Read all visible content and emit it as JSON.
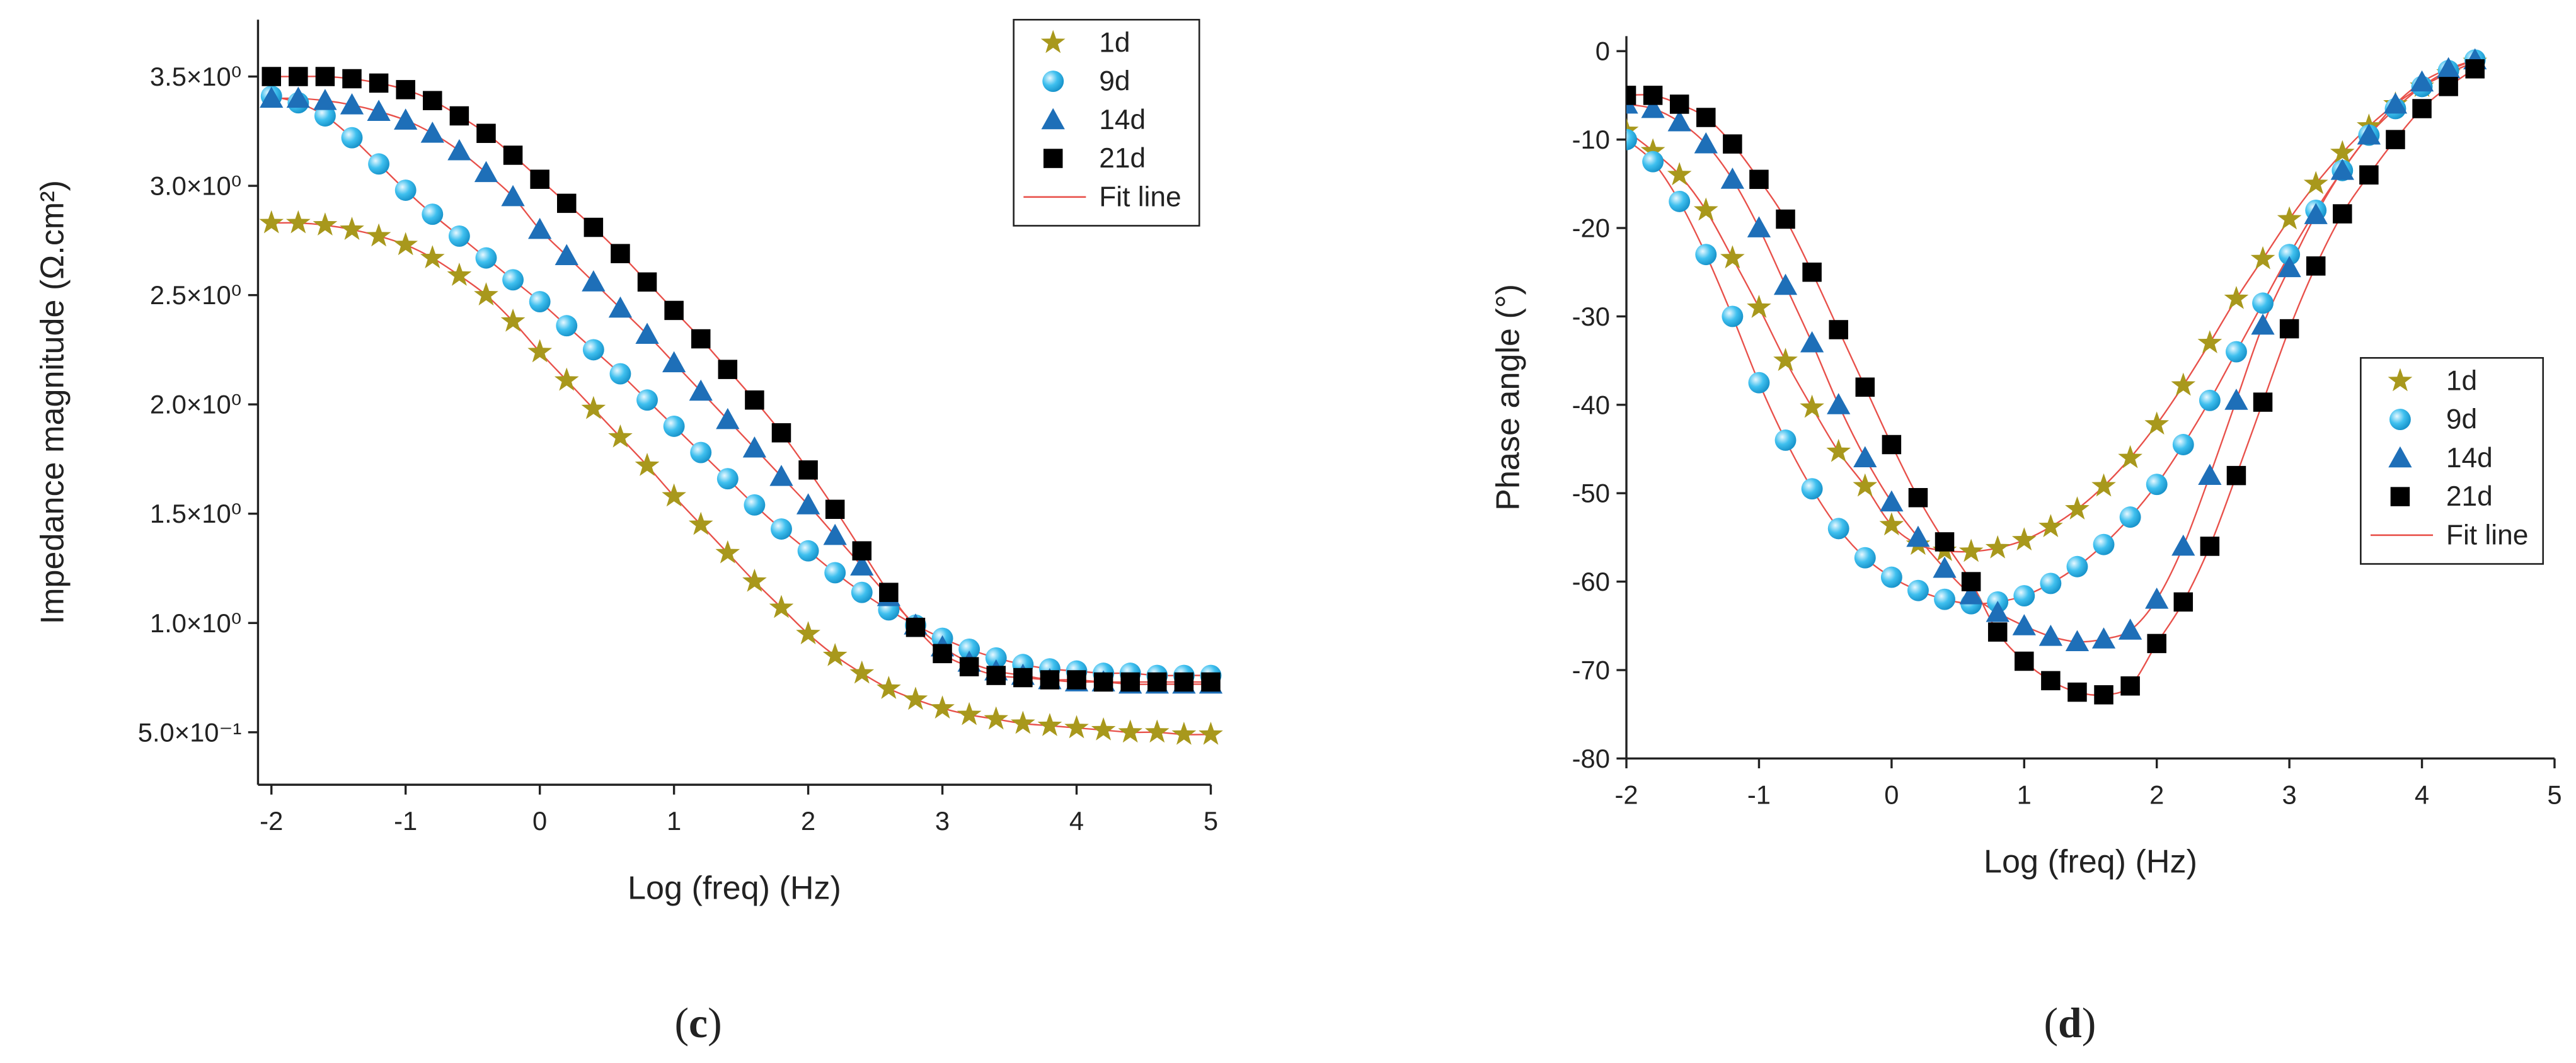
{
  "chart_data": [
    {
      "type": "scatter",
      "caption": "(c)",
      "xlabel": "Log (freq) (Hz)",
      "ylabel": "Impedance magnitude (Ω.cm²)",
      "xlim": [
        -2.1,
        5
      ],
      "xticks": [
        -2,
        -1,
        0,
        1,
        2,
        3,
        4,
        5
      ],
      "ylim": [
        0.26,
        3.76
      ],
      "yticks": [
        {
          "value": 0.5,
          "label": "5.0×10⁻¹"
        },
        {
          "value": 1.0,
          "label": "1.0×10⁰"
        },
        {
          "value": 1.5,
          "label": "1.5×10⁰"
        },
        {
          "value": 2.0,
          "label": "2.0×10⁰"
        },
        {
          "value": 2.5,
          "label": "2.5×10⁰"
        },
        {
          "value": 3.0,
          "label": "3.0×10⁰"
        },
        {
          "value": 3.5,
          "label": "3.5×10⁰"
        }
      ],
      "legend": "upper right",
      "fit_line": {
        "name": "Fit line",
        "color": "#e8504a"
      },
      "x": [
        -2,
        -1.8,
        -1.6,
        -1.4,
        -1.2,
        -1,
        -0.8,
        -0.6,
        -0.4,
        -0.2,
        0,
        0.2,
        0.4,
        0.6,
        0.8,
        1,
        1.2,
        1.4,
        1.6,
        1.8,
        2,
        2.2,
        2.4,
        2.6,
        2.8,
        3,
        3.2,
        3.4,
        3.6,
        3.8,
        4,
        4.2,
        4.4,
        4.6,
        4.8,
        5
      ],
      "series": [
        {
          "name": "1d",
          "color": "#a8981c",
          "marker": "star",
          "values": [
            2.83,
            2.83,
            2.82,
            2.8,
            2.77,
            2.73,
            2.67,
            2.59,
            2.5,
            2.38,
            2.24,
            2.11,
            1.98,
            1.85,
            1.72,
            1.58,
            1.45,
            1.32,
            1.19,
            1.07,
            0.95,
            0.85,
            0.77,
            0.7,
            0.65,
            0.61,
            0.58,
            0.56,
            0.54,
            0.53,
            0.52,
            0.51,
            0.5,
            0.5,
            0.49,
            0.49
          ]
        },
        {
          "name": "9d",
          "color": "#2bb5e8",
          "marker": "circle",
          "values": [
            3.41,
            3.38,
            3.32,
            3.22,
            3.1,
            2.98,
            2.87,
            2.77,
            2.67,
            2.57,
            2.47,
            2.36,
            2.25,
            2.14,
            2.02,
            1.9,
            1.78,
            1.66,
            1.54,
            1.43,
            1.33,
            1.23,
            1.14,
            1.06,
            0.99,
            0.93,
            0.88,
            0.84,
            0.81,
            0.79,
            0.78,
            0.77,
            0.77,
            0.76,
            0.76,
            0.76
          ]
        },
        {
          "name": "14d",
          "color": "#1e6fb8",
          "marker": "triangle",
          "values": [
            3.4,
            3.4,
            3.39,
            3.37,
            3.34,
            3.3,
            3.24,
            3.16,
            3.06,
            2.95,
            2.8,
            2.68,
            2.56,
            2.44,
            2.32,
            2.19,
            2.06,
            1.93,
            1.8,
            1.67,
            1.54,
            1.4,
            1.26,
            1.12,
            0.99,
            0.89,
            0.82,
            0.78,
            0.76,
            0.74,
            0.73,
            0.73,
            0.72,
            0.72,
            0.72,
            0.72
          ]
        },
        {
          "name": "21d",
          "color": "#000000",
          "marker": "square",
          "values": [
            3.5,
            3.5,
            3.5,
            3.49,
            3.47,
            3.44,
            3.39,
            3.32,
            3.24,
            3.14,
            3.03,
            2.92,
            2.81,
            2.69,
            2.56,
            2.43,
            2.3,
            2.16,
            2.02,
            1.87,
            1.7,
            1.52,
            1.33,
            1.14,
            0.98,
            0.86,
            0.8,
            0.76,
            0.75,
            0.74,
            0.74,
            0.73,
            0.73,
            0.73,
            0.73,
            0.73
          ]
        }
      ]
    },
    {
      "type": "scatter",
      "caption": "(d)",
      "xlabel": "Log (freq) (Hz)",
      "ylabel": "Phase angle (°)",
      "xlim": [
        -2,
        5
      ],
      "xticks": [
        -2,
        -1,
        0,
        1,
        2,
        3,
        4,
        5
      ],
      "ylim": [
        -80,
        1.7
      ],
      "yticks": [
        -80,
        -70,
        -60,
        -50,
        -40,
        -30,
        -20,
        -10,
        0
      ],
      "legend": "center right",
      "fit_line": {
        "name": "Fit line",
        "color": "#e8504a"
      },
      "x": [
        -2,
        -1.8,
        -1.6,
        -1.4,
        -1.2,
        -1,
        -0.8,
        -0.6,
        -0.4,
        -0.2,
        0,
        0.2,
        0.4,
        0.6,
        0.8,
        1,
        1.2,
        1.4,
        1.6,
        1.8,
        2,
        2.2,
        2.4,
        2.6,
        2.8,
        3,
        3.2,
        3.4,
        3.6,
        3.8,
        4,
        4.2,
        4.4
      ],
      "series": [
        {
          "name": "1d",
          "color": "#a8981c",
          "marker": "star",
          "values": [
            -9,
            -11.3,
            -14,
            -18,
            -23.4,
            -29,
            -35,
            -40.3,
            -45.3,
            -49.2,
            -53.6,
            -55.8,
            -56.5,
            -56.6,
            -56.2,
            -55.3,
            -53.8,
            -51.8,
            -49.2,
            -46,
            -42.2,
            -37.8,
            -33,
            -28,
            -23.5,
            -19,
            -15,
            -11.5,
            -8.5,
            -6,
            -4,
            -2.5,
            -1.2
          ]
        },
        {
          "name": "9d",
          "color": "#2bb5e8",
          "marker": "circle",
          "values": [
            -10,
            -12.5,
            -17,
            -23,
            -30,
            -37.5,
            -44,
            -49.5,
            -54,
            -57.3,
            -59.5,
            -61,
            -62,
            -62.5,
            -62.3,
            -61.6,
            -60.2,
            -58.3,
            -55.8,
            -52.7,
            -49,
            -44.5,
            -39.5,
            -34,
            -28.5,
            -23,
            -18,
            -13.5,
            -9.5,
            -6.5,
            -4,
            -2.2,
            -1
          ]
        },
        {
          "name": "14d",
          "color": "#1e6fb8",
          "marker": "triangle",
          "values": [
            -6,
            -6.5,
            -8,
            -10.5,
            -14.5,
            -20,
            -26.5,
            -33,
            -40,
            -46,
            -51,
            -55,
            -58.5,
            -61.5,
            -63.5,
            -65,
            -66.2,
            -66.8,
            -66.5,
            -65.5,
            -62,
            -56,
            -48,
            -39.5,
            -31,
            -24.5,
            -18.5,
            -13.5,
            -9.5,
            -6,
            -3.5,
            -2,
            -1
          ]
        },
        {
          "name": "21d",
          "color": "#000000",
          "marker": "square",
          "values": [
            -5,
            -5,
            -6,
            -7.5,
            -10.5,
            -14.5,
            -19,
            -25,
            -31.5,
            -38,
            -44.5,
            -50.5,
            -55.5,
            -60,
            -65.7,
            -69,
            -71.2,
            -72.5,
            -72.8,
            -71.8,
            -67,
            -62.3,
            -56,
            -48,
            -39.7,
            -31.4,
            -24.3,
            -18.4,
            -14,
            -10,
            -6.5,
            -4,
            -2
          ]
        }
      ]
    }
  ]
}
